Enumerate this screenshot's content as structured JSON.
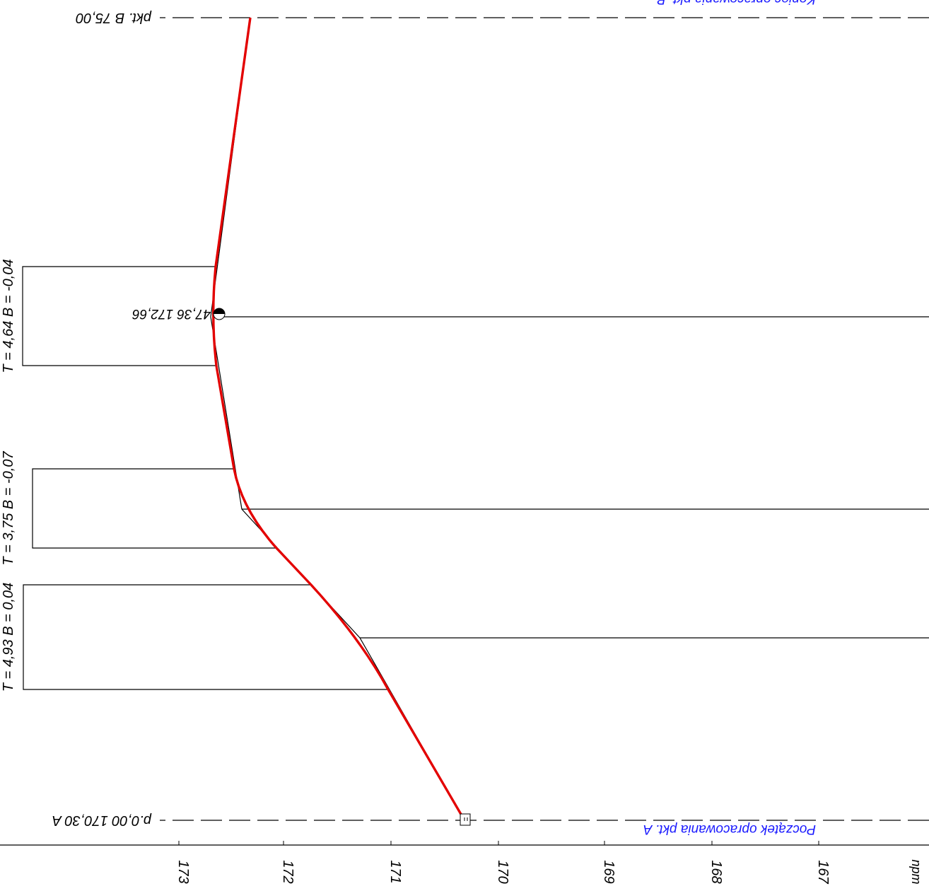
{
  "profile": {
    "axis": {
      "unit": "npm",
      "ticks": [
        {
          "value": 173,
          "label": "173"
        },
        {
          "value": 172,
          "label": "172"
        },
        {
          "value": 171,
          "label": "171"
        },
        {
          "value": 170,
          "label": "170"
        },
        {
          "value": 169,
          "label": "169"
        },
        {
          "value": 168,
          "label": "168"
        },
        {
          "value": 167,
          "label": "167"
        }
      ]
    },
    "start_point": {
      "label": "p.0,00 170,30 A",
      "description": "Początek opracowania pkt. A"
    },
    "end_point": {
      "label": "pkt. B 75,00",
      "description": "Koniec opracowania pkt. B"
    },
    "peak_label": "47,36 172,66",
    "curves": [
      {
        "label": "T = 4,93  B = 0,04"
      },
      {
        "label": "T = 3,75  B = -0,07"
      },
      {
        "label": "T = 4,64  B = -0,04"
      }
    ],
    "colors": {
      "grade_line": "#e30000",
      "annotation": "#1a1aff",
      "ink": "#000000"
    }
  }
}
